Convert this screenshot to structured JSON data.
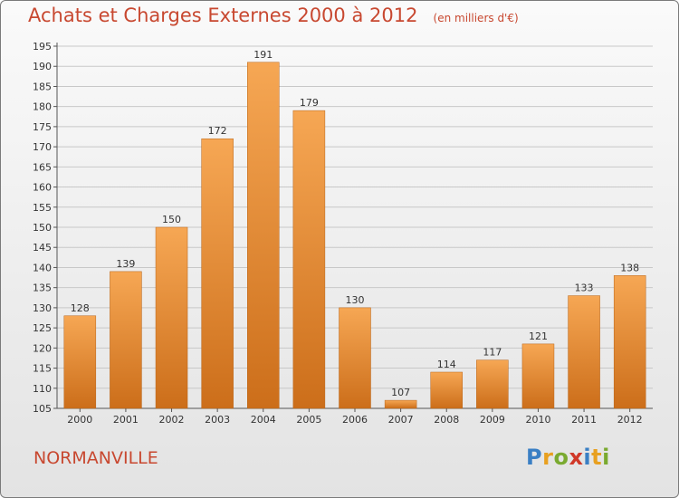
{
  "title": "Achats et Charges Externes 2000 à 2012",
  "subtitle": "(en milliers d'€)",
  "commune": "NORMANVILLE",
  "logo": {
    "text": "Proxiti",
    "colors": [
      "#3a7fc4",
      "#e8a020",
      "#7aaa30",
      "#d03828",
      "#3a7fc4",
      "#e8a020",
      "#7aaa30"
    ]
  },
  "colors": {
    "bar_light": "#f6a754",
    "bar_dark": "#cc6e1a",
    "title": "#c84830",
    "grid": "#c8c8c8"
  },
  "chart_data": {
    "type": "bar",
    "categories": [
      "2000",
      "2001",
      "2002",
      "2003",
      "2004",
      "2005",
      "2006",
      "2007",
      "2008",
      "2009",
      "2010",
      "2011",
      "2012"
    ],
    "values": [
      128,
      139,
      150,
      172,
      191,
      179,
      130,
      107,
      114,
      117,
      121,
      133,
      138
    ],
    "ylim": [
      105,
      195
    ],
    "yticks": [
      105,
      110,
      115,
      120,
      125,
      130,
      135,
      140,
      145,
      150,
      155,
      160,
      165,
      170,
      175,
      180,
      185,
      190,
      195
    ],
    "grid": true
  }
}
